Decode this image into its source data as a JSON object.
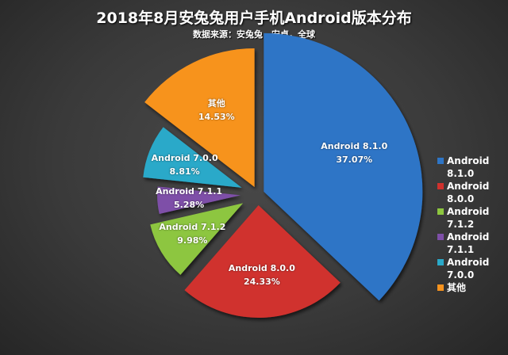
{
  "header": {
    "title": "2018年8月安兔兔用户手机Android版本分布",
    "subtitle": "数据来源：安兔兔，安卓，全球"
  },
  "chart_data": {
    "type": "pie",
    "title": "2018年8月安兔兔用户手机Android版本分布",
    "subtitle": "数据来源：安兔兔，安卓，全球",
    "categories": [
      "Android 8.1.0",
      "Android 8.0.0",
      "Android 7.1.2",
      "Android 7.1.1",
      "Android 7.0.0",
      "其他"
    ],
    "values": [
      37.07,
      24.33,
      9.98,
      5.28,
      8.81,
      14.53
    ],
    "unit": "%",
    "colors": [
      "#2e75c6",
      "#d0312d",
      "#8dc63f",
      "#7e4fa8",
      "#2aa9c9",
      "#f7931e"
    ],
    "legend_position": "right"
  },
  "slices": [
    {
      "name": "Android 8.1.0",
      "pct": "37.07%"
    },
    {
      "name": "Android 8.0.0",
      "pct": "24.33%"
    },
    {
      "name": "Android 7.1.2",
      "pct": "9.98%"
    },
    {
      "name": "Android 7.1.1",
      "pct": "5.28%"
    },
    {
      "name": "Android 7.0.0",
      "pct": "8.81%"
    },
    {
      "name": "其他",
      "pct": "14.53%"
    }
  ],
  "legend": [
    {
      "label": "Android\n8.1.0",
      "color": "#2e75c6"
    },
    {
      "label": "Android\n8.0.0",
      "color": "#d0312d"
    },
    {
      "label": "Android\n7.1.2",
      "color": "#8dc63f"
    },
    {
      "label": "Android\n7.1.1",
      "color": "#7e4fa8"
    },
    {
      "label": "Android\n7.0.0",
      "color": "#2aa9c9"
    },
    {
      "label": "其他",
      "color": "#f7931e"
    }
  ]
}
